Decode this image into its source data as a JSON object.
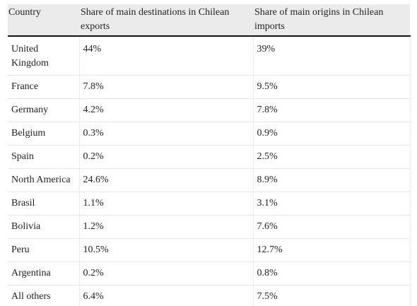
{
  "table": {
    "headers": [
      "Country",
      "Share of main destinations in Chilean exports",
      "Share of main origins in Chilean imports"
    ],
    "rows": [
      {
        "country": "United Kingdom",
        "exports": "44%",
        "imports": "39%"
      },
      {
        "country": "France",
        "exports": "7.8%",
        "imports": "9.5%"
      },
      {
        "country": "Germany",
        "exports": "4.2%",
        "imports": "7.8%"
      },
      {
        "country": "Belgium",
        "exports": "0.3%",
        "imports": "0.9%"
      },
      {
        "country": "Spain",
        "exports": "0.2%",
        "imports": "2.5%"
      },
      {
        "country": "North America",
        "exports": "24.6%",
        "imports": "8.9%"
      },
      {
        "country": "Brasil",
        "exports": "1.1%",
        "imports": "3.1%"
      },
      {
        "country": "Bolivia",
        "exports": "1.2%",
        "imports": "7.6%"
      },
      {
        "country": "Peru",
        "exports": "10.5%",
        "imports": "12.7%"
      },
      {
        "country": "Argentina",
        "exports": "0.2%",
        "imports": "0.8%"
      },
      {
        "country": "All others",
        "exports": "6.4%",
        "imports": "7.5%"
      }
    ]
  }
}
